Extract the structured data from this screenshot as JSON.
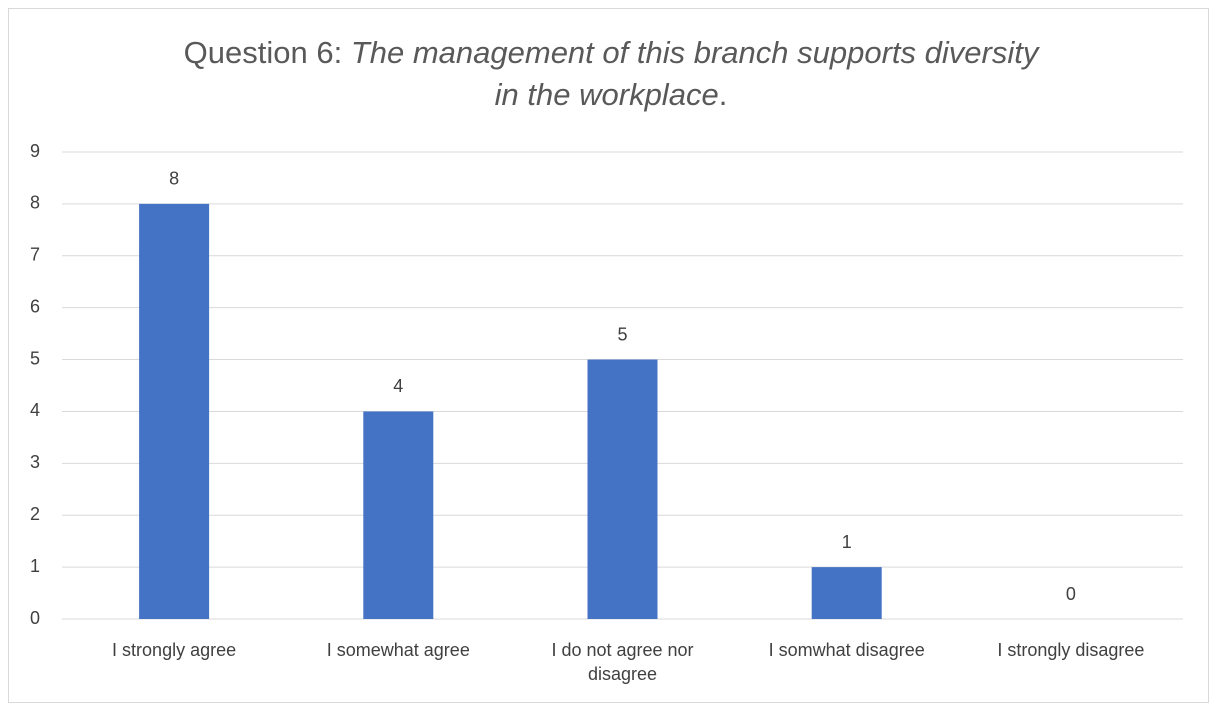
{
  "chart_data": {
    "type": "bar",
    "title": [
      "Question 6: ",
      "The management of this branch supports diversity",
      "in the workplace",
      "."
    ],
    "categories": [
      "I strongly agree",
      "I somewhat agree",
      "I do not agree nor disagree",
      "I somwhat disagree",
      "I strongly disagree"
    ],
    "values": [
      8,
      4,
      5,
      1,
      0
    ],
    "color": "#4472c4",
    "ylim": [
      0,
      9
    ],
    "yticks": [
      0,
      1,
      2,
      3,
      4,
      5,
      6,
      7,
      8,
      9
    ],
    "grid": true
  }
}
